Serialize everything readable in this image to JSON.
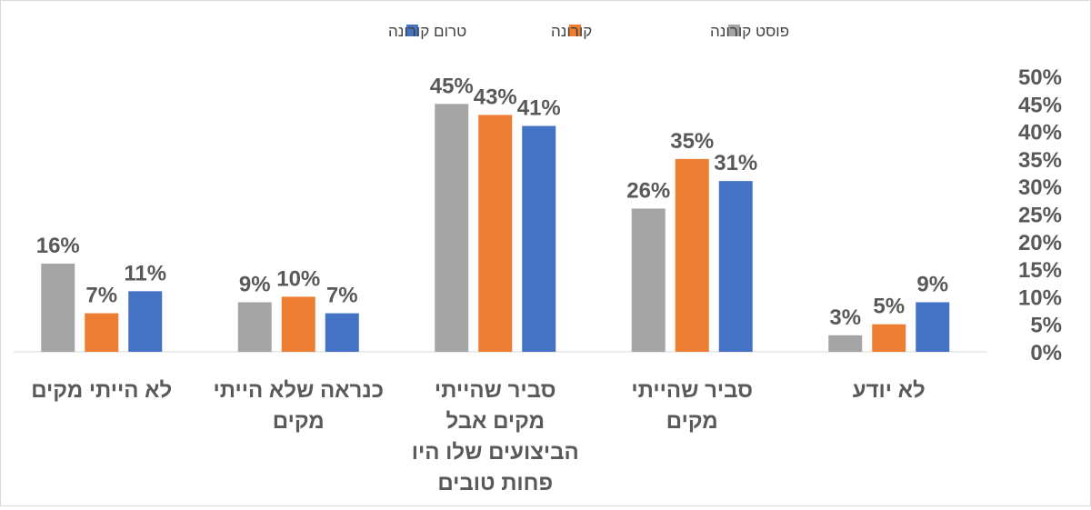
{
  "chart_data": {
    "type": "bar",
    "categories": [
      [
        "לא יודע"
      ],
      [
        "סביר שהייתי",
        "מקים"
      ],
      [
        "סביר שהייתי",
        "מקים  אבל",
        "הביצועים שלו היו",
        "פחות טובים"
      ],
      [
        "כנראה שלא הייתי",
        "מקים"
      ],
      [
        "לא הייתי מקים"
      ]
    ],
    "series": [
      {
        "name": "פוסט קורונה",
        "color": "#a5a5a5",
        "values": [
          3,
          26,
          45,
          9,
          16
        ]
      },
      {
        "name": "קורונה",
        "color": "#ed7d31",
        "values": [
          5,
          35,
          43,
          10,
          7
        ]
      },
      {
        "name": "טרום קורונה",
        "color": "#4472c4",
        "values": [
          9,
          31,
          41,
          7,
          11
        ]
      }
    ],
    "ylim": [
      0,
      50
    ],
    "ytick_step": 5,
    "y_axis_position": "right",
    "value_format": "percent",
    "legend_position": "top",
    "grid": false
  }
}
